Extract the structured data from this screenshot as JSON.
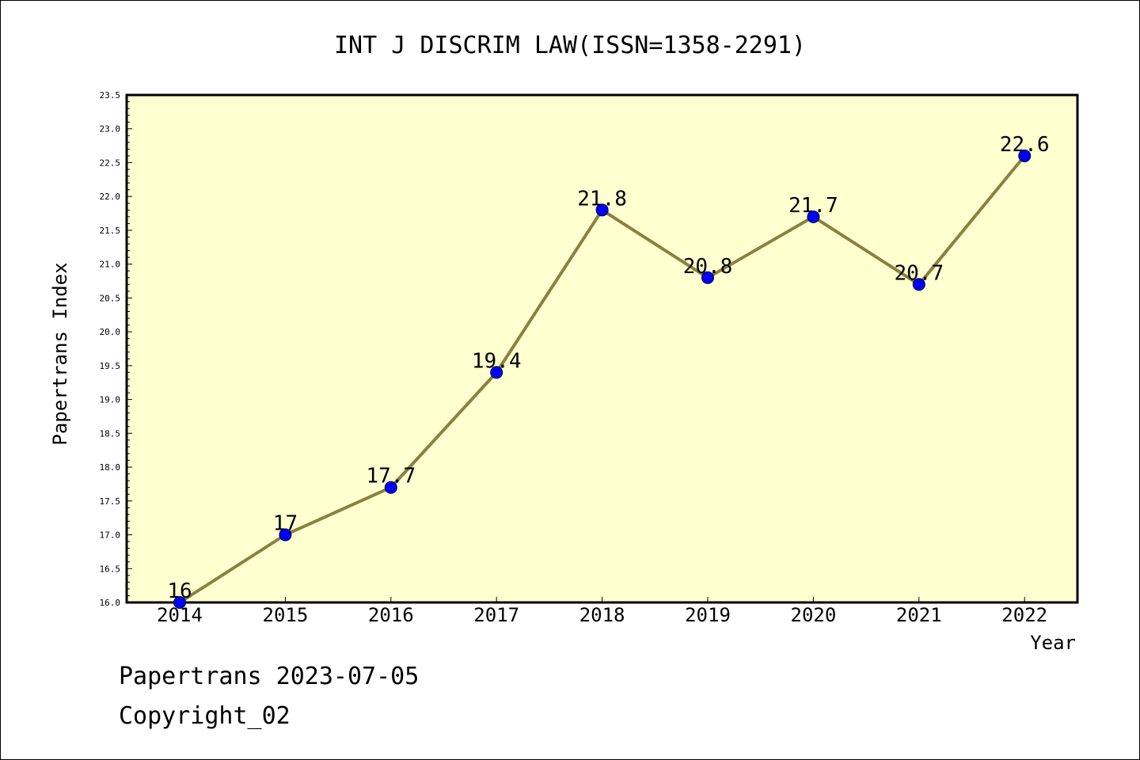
{
  "chart_data": {
    "type": "line",
    "title": "INT J DISCRIM LAW(ISSN=1358-2291)",
    "xlabel": "Year",
    "ylabel": "Papertrans Index",
    "x": [
      2014,
      2015,
      2016,
      2017,
      2018,
      2019,
      2020,
      2021,
      2022
    ],
    "values": [
      16,
      17,
      17.7,
      19.4,
      21.8,
      20.8,
      21.7,
      20.7,
      22.6
    ],
    "data_labels": [
      "16",
      "17",
      "17.7",
      "19.4",
      "21.8",
      "20.8",
      "21.7",
      "20.7",
      "22.6"
    ],
    "ylim": [
      16.0,
      23.5
    ],
    "yticks": [
      "16.0",
      "16.5",
      "17.0",
      "17.5",
      "18.0",
      "18.5",
      "19.0",
      "19.5",
      "20.0",
      "20.5",
      "21.0",
      "21.5",
      "22.0",
      "22.5",
      "23.0",
      "23.5"
    ],
    "grid": false,
    "legend": "none",
    "colors": {
      "plot_background": "#ffffd0",
      "line": "#8b8040",
      "marker": "#0000ff"
    }
  },
  "footer": {
    "line1": "Papertrans 2023-07-05",
    "line2": "Copyright_02"
  }
}
